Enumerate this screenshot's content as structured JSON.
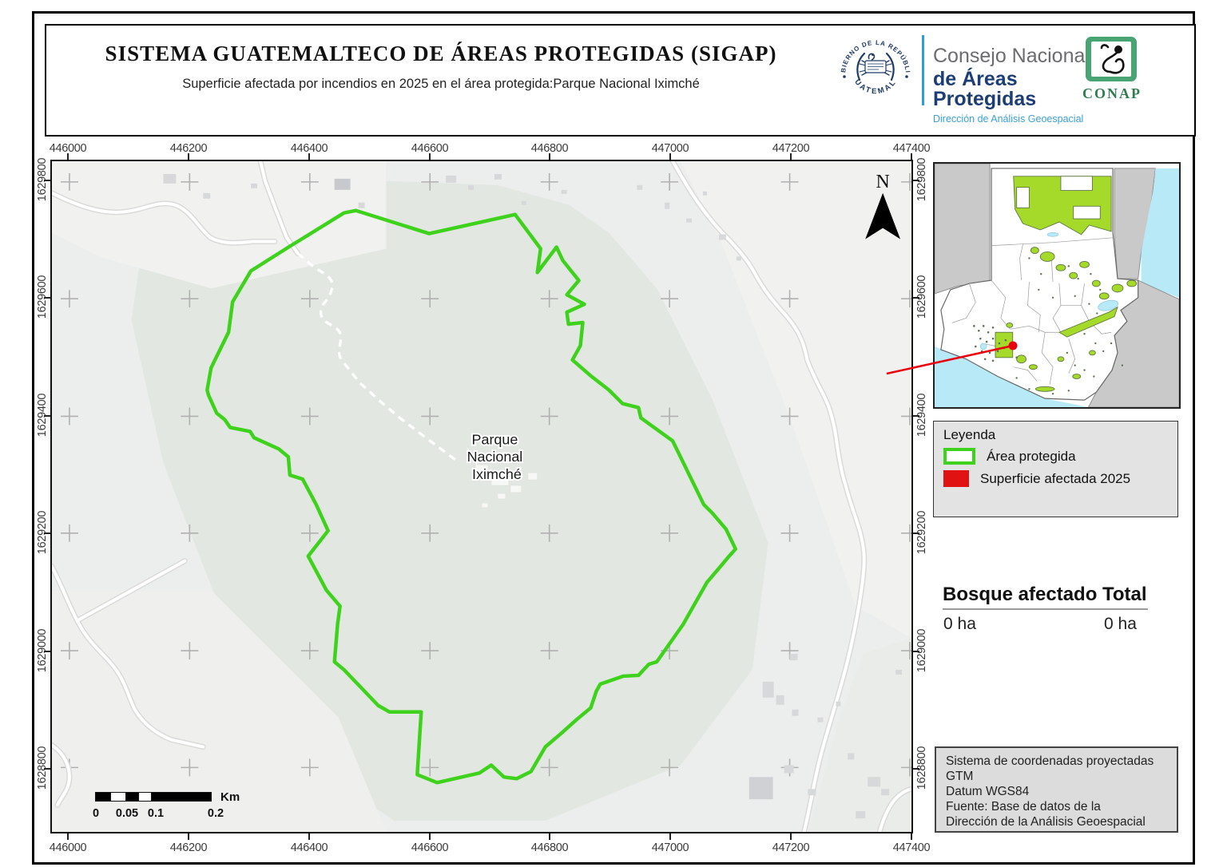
{
  "header": {
    "title": "SISTEMA GUATEMALTECO DE ÁREAS PROTEGIDAS  (SIGAP)",
    "subtitle": "Superficie afectada por incendios en 2025 en el área protegida:Parque Nacional Iximché",
    "seal": {
      "arc_top": "GOBIERNO DE LA REPÚBLICA",
      "arc_bottom": "GUATEMALA"
    },
    "council": {
      "line1": "Consejo Nacional",
      "line2": "de Áreas Protegidas",
      "line3": "Dirección de Análisis Geoespacial"
    },
    "conap_label": "CONAP"
  },
  "map": {
    "place_label": [
      "Parque",
      "Nacional",
      "Iximché"
    ],
    "north_label": "N",
    "x_axis": [
      "446000",
      "446200",
      "446400",
      "446600",
      "446800",
      "447000",
      "447200",
      "447400"
    ],
    "y_axis": [
      "1629800",
      "1629600",
      "1629400",
      "1629200",
      "1629000",
      "1628800"
    ],
    "scalebar": {
      "labels": [
        "0",
        "0.05",
        "0.1",
        "0.2"
      ],
      "unit": "Km"
    }
  },
  "legend": {
    "title": "Leyenda",
    "items": [
      {
        "label": "Área protegida",
        "swatch": "outline"
      },
      {
        "label": "Superficie afectada 2025",
        "swatch": "fill"
      }
    ]
  },
  "stats": {
    "left_header": "Bosque afectado",
    "right_header": "Total",
    "left_value": "0 ha",
    "right_value": "0 ha"
  },
  "info": {
    "lines": [
      "Sistema de coordenadas proyectadas",
      "GTM",
      "Datum WGS84",
      "Fuente: Base de datos de la",
      "Dirección de la Análisis Geoespacial"
    ]
  },
  "colors": {
    "protected_outline": "#3ed21c",
    "affected_fill": "#e01212",
    "inset_protected": "#a6da2a",
    "water": "#b8e9f6",
    "accent_blue": "#2d9fd8",
    "navy": "#1d3a68",
    "conap_green": "#48a473"
  }
}
